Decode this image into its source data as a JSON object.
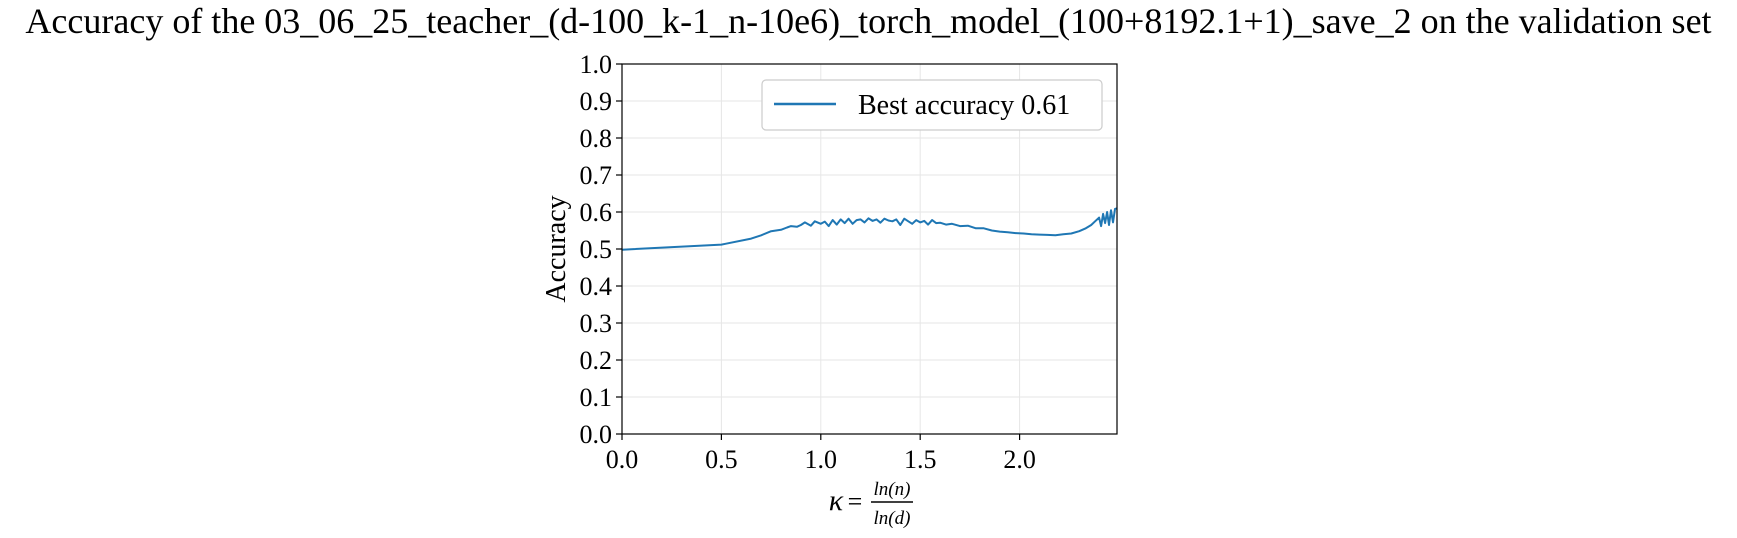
{
  "chart_data": {
    "type": "line",
    "title": "Accuracy of the 03_06_25_teacher_(d-100_k-1_n-10e6)_torch_model_(100+8192.1+1)_save_2 on the validation set",
    "xlabel": {
      "prefix": "κ",
      "equals": "=",
      "numerator": "ln(n)",
      "denominator": "ln(d)"
    },
    "ylabel": "Accuracy",
    "xlim": [
      0,
      2.49
    ],
    "ylim": [
      0,
      1
    ],
    "x_ticks": [
      0,
      0.5,
      1,
      1.5,
      2
    ],
    "x_tick_labels": [
      "0.0",
      "0.5",
      "1.0",
      "1.5",
      "2.0"
    ],
    "y_ticks": [
      0,
      0.1,
      0.2,
      0.3,
      0.4,
      0.5,
      0.6,
      0.7,
      0.8,
      0.9,
      1.0
    ],
    "y_tick_labels": [
      "0.0",
      "0.1",
      "0.2",
      "0.3",
      "0.4",
      "0.5",
      "0.6",
      "0.7",
      "0.8",
      "0.9",
      "1.0"
    ],
    "grid": true,
    "legend_position": "top-right",
    "series": [
      {
        "name": "Best accuracy 0.61",
        "color": "#1f77b4",
        "x": [
          0.0,
          0.5,
          0.52,
          0.65,
          0.7,
          0.75,
          0.8,
          0.83,
          0.85,
          0.88,
          0.9,
          0.92,
          0.95,
          0.97,
          1.0,
          1.02,
          1.04,
          1.06,
          1.08,
          1.1,
          1.12,
          1.14,
          1.16,
          1.18,
          1.2,
          1.22,
          1.24,
          1.26,
          1.28,
          1.3,
          1.32,
          1.34,
          1.36,
          1.38,
          1.4,
          1.42,
          1.44,
          1.46,
          1.48,
          1.5,
          1.52,
          1.54,
          1.56,
          1.58,
          1.6,
          1.63,
          1.66,
          1.7,
          1.74,
          1.78,
          1.82,
          1.86,
          1.9,
          1.94,
          1.98,
          2.02,
          2.06,
          2.1,
          2.14,
          2.18,
          2.22,
          2.26,
          2.3,
          2.33,
          2.36,
          2.38,
          2.4,
          2.41,
          2.42,
          2.43,
          2.44,
          2.45,
          2.46,
          2.47,
          2.48,
          2.49
        ],
        "y": [
          0.498,
          0.512,
          0.514,
          0.528,
          0.537,
          0.548,
          0.552,
          0.558,
          0.562,
          0.56,
          0.565,
          0.572,
          0.563,
          0.575,
          0.568,
          0.574,
          0.562,
          0.578,
          0.566,
          0.58,
          0.57,
          0.582,
          0.568,
          0.578,
          0.58,
          0.572,
          0.583,
          0.576,
          0.58,
          0.571,
          0.582,
          0.577,
          0.575,
          0.58,
          0.565,
          0.582,
          0.575,
          0.568,
          0.578,
          0.572,
          0.576,
          0.566,
          0.578,
          0.57,
          0.571,
          0.566,
          0.568,
          0.562,
          0.563,
          0.556,
          0.556,
          0.55,
          0.547,
          0.545,
          0.543,
          0.542,
          0.54,
          0.539,
          0.538,
          0.537,
          0.54,
          0.542,
          0.548,
          0.555,
          0.565,
          0.575,
          0.585,
          0.562,
          0.595,
          0.57,
          0.6,
          0.565,
          0.605,
          0.572,
          0.608,
          0.61
        ]
      }
    ]
  }
}
